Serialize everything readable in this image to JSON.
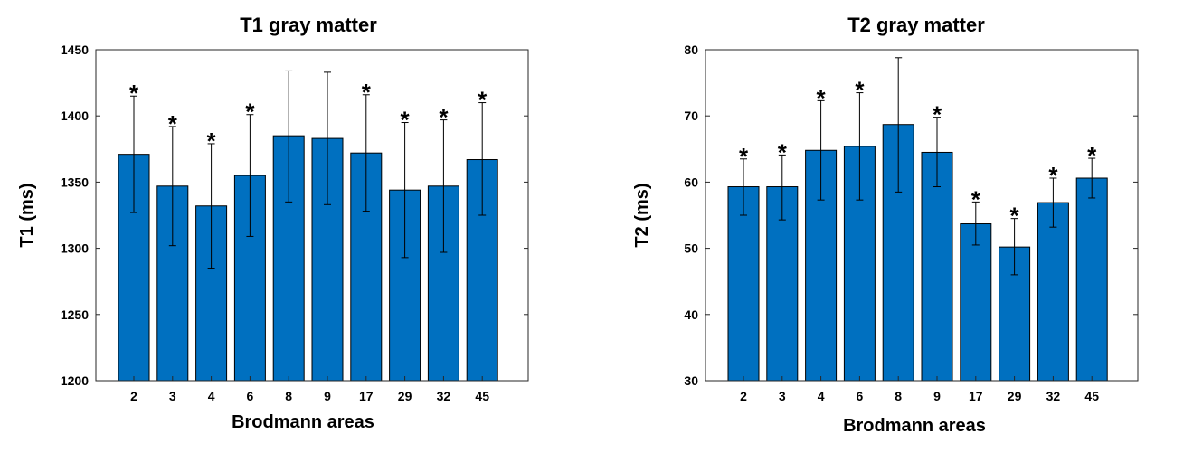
{
  "chart_data": [
    {
      "type": "bar",
      "title": "T1 gray matter",
      "xlabel": "Brodmann areas",
      "ylabel": "T1 (ms)",
      "ylim": [
        1200,
        1450
      ],
      "yticks": [
        1200,
        1250,
        1300,
        1350,
        1400,
        1450
      ],
      "categories": [
        "2",
        "3",
        "4",
        "6",
        "8",
        "9",
        "17",
        "29",
        "32",
        "45"
      ],
      "values": [
        1371,
        1347,
        1332,
        1355,
        1385,
        1383,
        1372,
        1344,
        1347,
        1367
      ],
      "error_upper": [
        1415,
        1392,
        1379,
        1401,
        1434,
        1433,
        1416,
        1395,
        1397,
        1410
      ],
      "error_lower": [
        1327,
        1302,
        1285,
        1309,
        1335,
        1333,
        1328,
        1293,
        1297,
        1325
      ],
      "significant": [
        true,
        true,
        true,
        true,
        false,
        false,
        true,
        true,
        true,
        true
      ],
      "significance_marker": "*",
      "bar_color": "#0070C0",
      "grid": false
    },
    {
      "type": "bar",
      "title": "T2 gray matter",
      "xlabel": "Brodmann areas",
      "ylabel": "T2 (ms)",
      "ylim": [
        30,
        80
      ],
      "yticks": [
        30,
        40,
        50,
        60,
        70,
        80
      ],
      "categories": [
        "2",
        "3",
        "4",
        "6",
        "8",
        "9",
        "17",
        "29",
        "32",
        "45"
      ],
      "values": [
        59.3,
        59.3,
        64.8,
        65.4,
        68.7,
        64.5,
        53.7,
        50.2,
        56.9,
        60.6
      ],
      "error_upper": [
        63.5,
        64.1,
        72.3,
        73.5,
        78.8,
        69.8,
        57.0,
        54.5,
        60.6,
        63.6
      ],
      "error_lower": [
        55.0,
        54.3,
        57.3,
        57.3,
        58.5,
        59.3,
        50.5,
        46.0,
        53.2,
        57.6
      ],
      "significant": [
        true,
        true,
        true,
        true,
        false,
        true,
        true,
        true,
        true,
        true
      ],
      "significance_marker": "*",
      "bar_color": "#0070C0",
      "grid": false
    }
  ]
}
